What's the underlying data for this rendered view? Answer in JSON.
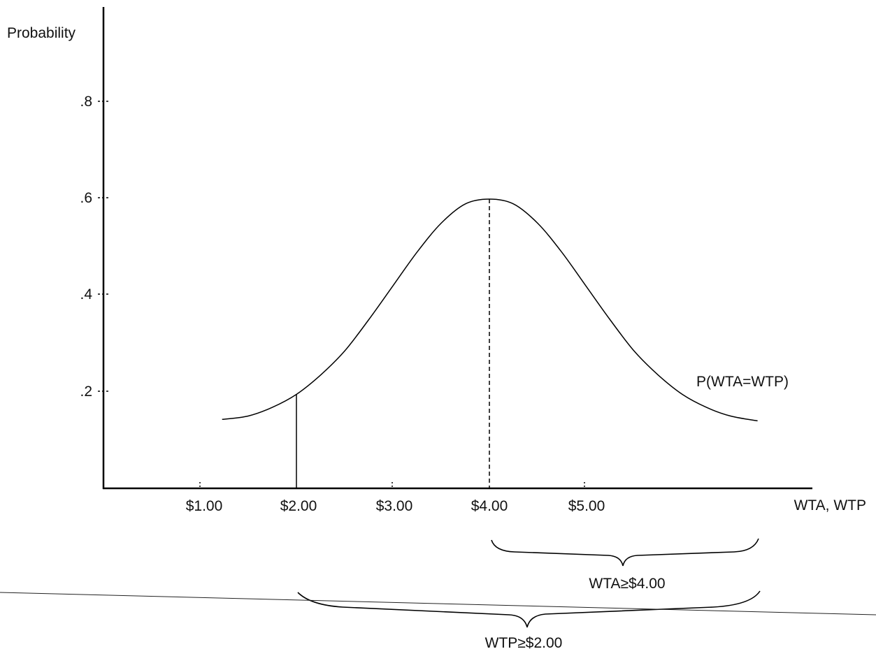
{
  "chart_data": {
    "type": "line",
    "ylabel": "Probability",
    "xlabel": "WTA, WTP",
    "y_ticks": [
      ".2",
      ".4",
      ".6",
      ".8"
    ],
    "y_tick_values": [
      0.2,
      0.4,
      0.6,
      0.8
    ],
    "x_ticks": [
      "$1.00",
      "$2.00",
      "$3.00",
      "$4.00",
      "$5.00"
    ],
    "x_tick_values": [
      1,
      2,
      3,
      4,
      5
    ],
    "xlim": [
      0,
      7.35
    ],
    "ylim": [
      0,
      1.0
    ],
    "series": [
      {
        "name": "P(WTA=WTP)",
        "x": [
          1.23,
          1.5,
          1.75,
          2.0,
          2.25,
          2.5,
          2.75,
          3.0,
          3.25,
          3.5,
          3.75,
          4.0,
          4.25,
          4.5,
          4.75,
          5.0,
          5.25,
          5.5,
          5.75,
          6.0,
          6.25,
          6.5,
          6.78
        ],
        "y": [
          0.143,
          0.15,
          0.168,
          0.195,
          0.235,
          0.285,
          0.35,
          0.42,
          0.49,
          0.55,
          0.59,
          0.6,
          0.59,
          0.55,
          0.49,
          0.42,
          0.35,
          0.285,
          0.235,
          0.195,
          0.168,
          0.15,
          0.14
        ]
      }
    ],
    "markers": {
      "solid_x": 2.0,
      "solid_y": 0.195,
      "dashed_x": 4.0,
      "dashed_y": 0.6
    },
    "curve_label": "P(WTA=WTP)",
    "braces": [
      {
        "label": "WTA≥$4.00",
        "from": 4.0,
        "to": 6.78
      },
      {
        "label": "WTP≥$2.00",
        "from": 2.0,
        "to": 6.78
      }
    ]
  }
}
